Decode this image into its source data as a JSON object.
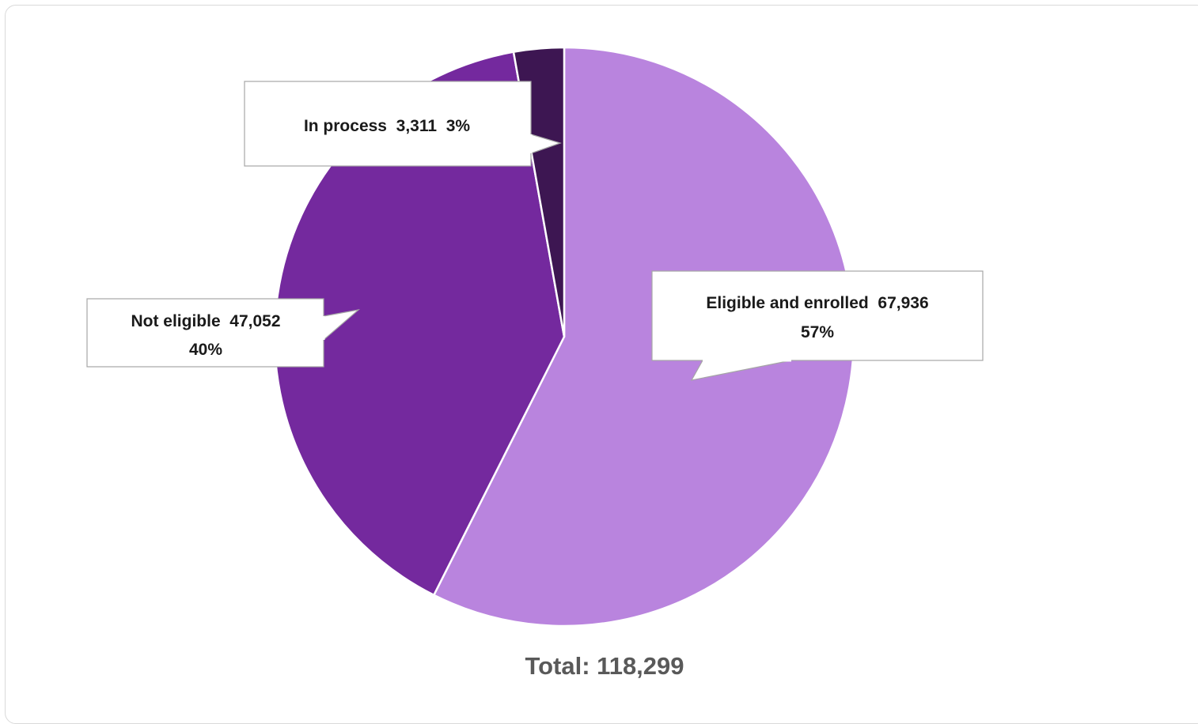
{
  "chart_data": {
    "type": "pie",
    "start_angle_deg": 0,
    "direction": "clockwise",
    "slices": [
      {
        "label": "Eligible and enrolled",
        "value": 67936,
        "value_text": "67,936",
        "percent_text": "57%",
        "color": "#b984de"
      },
      {
        "label": "Not eligible",
        "value": 47052,
        "value_text": "47,052",
        "percent_text": "40%",
        "color": "#74299e"
      },
      {
        "label": "In process",
        "value": 3311,
        "value_text": "3,311",
        "percent_text": "3%",
        "color": "#3d1652"
      }
    ],
    "total_text": "Total: 118,299",
    "slice_border_color": "#ffffff"
  }
}
